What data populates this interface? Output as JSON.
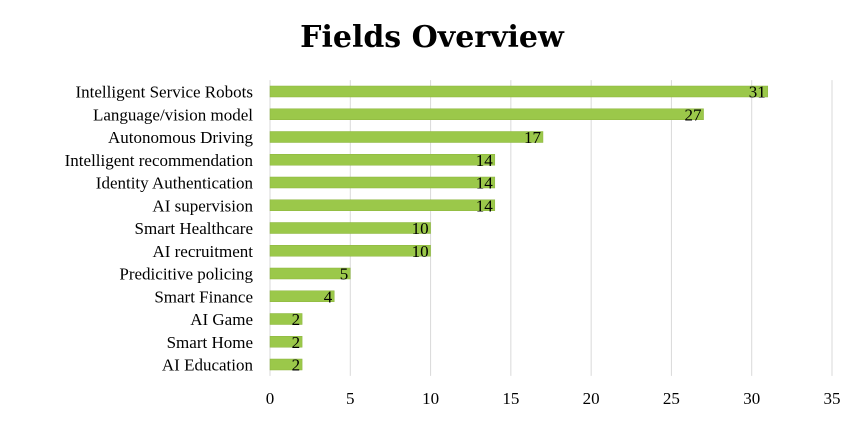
{
  "chart_data": {
    "type": "bar",
    "orientation": "horizontal",
    "title": "Fields Overview",
    "categories": [
      "Intelligent Service Robots",
      "Language/vision model",
      "Autonomous Driving",
      "Intelligent recommendation",
      "Identity Authentication",
      "AI supervision",
      "Smart Healthcare",
      "AI recruitment",
      "Predicitive policing",
      "Smart Finance",
      "AI Game",
      "Smart Home",
      "AI Education"
    ],
    "values": [
      31,
      27,
      17,
      14,
      14,
      14,
      10,
      10,
      5,
      4,
      2,
      2,
      2
    ],
    "xlim": [
      0,
      35
    ],
    "xticks": [
      0,
      5,
      10,
      15,
      20,
      25,
      30,
      35
    ],
    "grid": "vertical",
    "legend": "none",
    "colors": {
      "bar_fill": "#9bc84a",
      "bar_stroke": "#8cb43f",
      "grid": "#d9d9d9"
    }
  }
}
